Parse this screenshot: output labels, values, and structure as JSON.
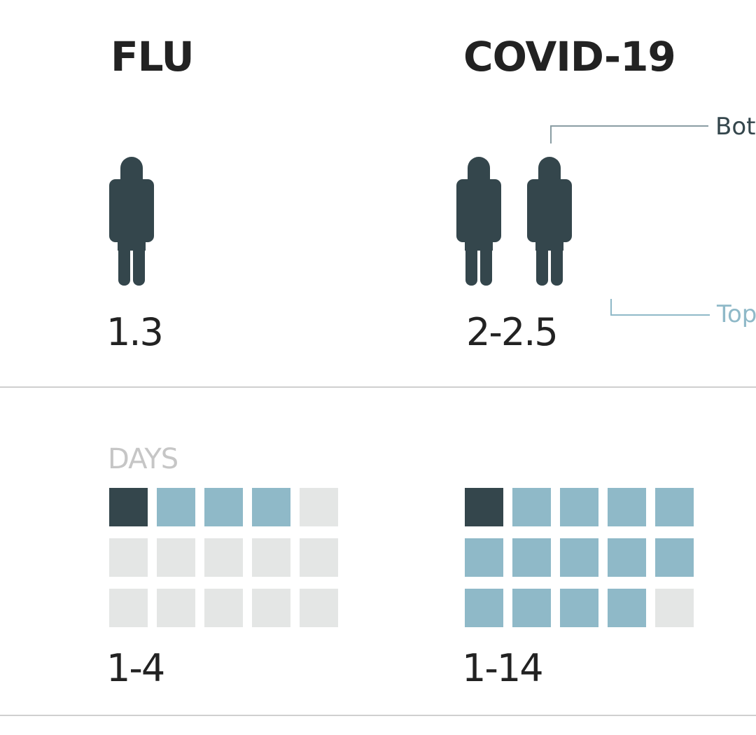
{
  "diseases": {
    "flu": {
      "name": "FLU",
      "r0_label": "1.3",
      "r0": 1.3,
      "incubation_label": "1-4",
      "incubation_days_max": 4
    },
    "covid": {
      "name": "COVID-19",
      "r0_label": "2-2.5",
      "r0_low": 2,
      "r0_high": 2.5,
      "incubation_label": "1-14",
      "incubation_days_max": 14
    }
  },
  "callouts": {
    "bottom": "Bot",
    "top": "Top"
  },
  "days_label": "DAYS",
  "grid": {
    "columns": 5,
    "rows": 3,
    "total_days": 15
  },
  "colors": {
    "dark": "#34464c",
    "blue": "#8fb9c8",
    "gray": "#c8c8c8",
    "light_gray": "#e4e6e5",
    "text": "#222222"
  }
}
